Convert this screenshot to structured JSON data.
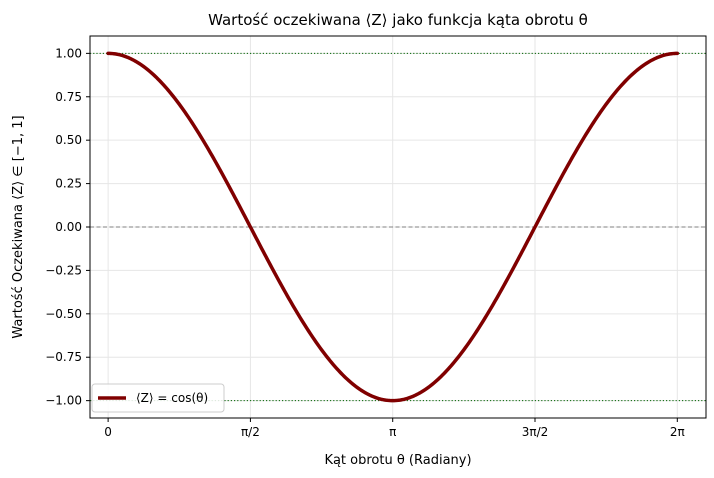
{
  "chart_data": {
    "type": "line",
    "title": "Wartość oczekiwana ⟨Z⟩ jako funkcja kąta obrotu θ",
    "xlabel": "Kąt obrotu θ (Radiany)",
    "ylabel": "Wartość Oczekiwana ⟨Z⟩ ∈ [−1, 1]",
    "xlim": [
      -0.2,
      6.6
    ],
    "ylim": [
      -1.1,
      1.1
    ],
    "x_ticks": [
      {
        "value": 0,
        "label": "0"
      },
      {
        "value": 1.5708,
        "label": "π/2"
      },
      {
        "value": 3.1416,
        "label": "π"
      },
      {
        "value": 4.7124,
        "label": "3π/2"
      },
      {
        "value": 6.2832,
        "label": "2π"
      }
    ],
    "y_ticks": [
      {
        "value": 1.0,
        "label": "1.00"
      },
      {
        "value": 0.75,
        "label": "0.75"
      },
      {
        "value": 0.5,
        "label": "0.50"
      },
      {
        "value": 0.25,
        "label": "0.25"
      },
      {
        "value": 0.0,
        "label": "0.00"
      },
      {
        "value": -0.25,
        "label": "−0.25"
      },
      {
        "value": -0.5,
        "label": "−0.50"
      },
      {
        "value": -0.75,
        "label": "−0.75"
      },
      {
        "value": -1.0,
        "label": "−1.00"
      }
    ],
    "grid": true,
    "reference_lines": [
      {
        "y": 1.0,
        "style": "dotted",
        "color": "#006400"
      },
      {
        "y": 0.0,
        "style": "dashed",
        "color": "#808080"
      },
      {
        "y": -1.0,
        "style": "dotted",
        "color": "#006400"
      }
    ],
    "series": [
      {
        "name": "⟨Z⟩ = cos(θ)",
        "color": "#800000",
        "function": "cos",
        "x_range": [
          0,
          6.2832
        ],
        "x": [
          0,
          0.7854,
          1.5708,
          2.3562,
          3.1416,
          3.927,
          4.7124,
          5.4978,
          6.2832
        ],
        "y": [
          1.0,
          0.7071,
          0.0,
          -0.7071,
          -1.0,
          -0.7071,
          0.0,
          0.7071,
          1.0
        ]
      }
    ],
    "legend": {
      "position": "lower-left"
    }
  }
}
